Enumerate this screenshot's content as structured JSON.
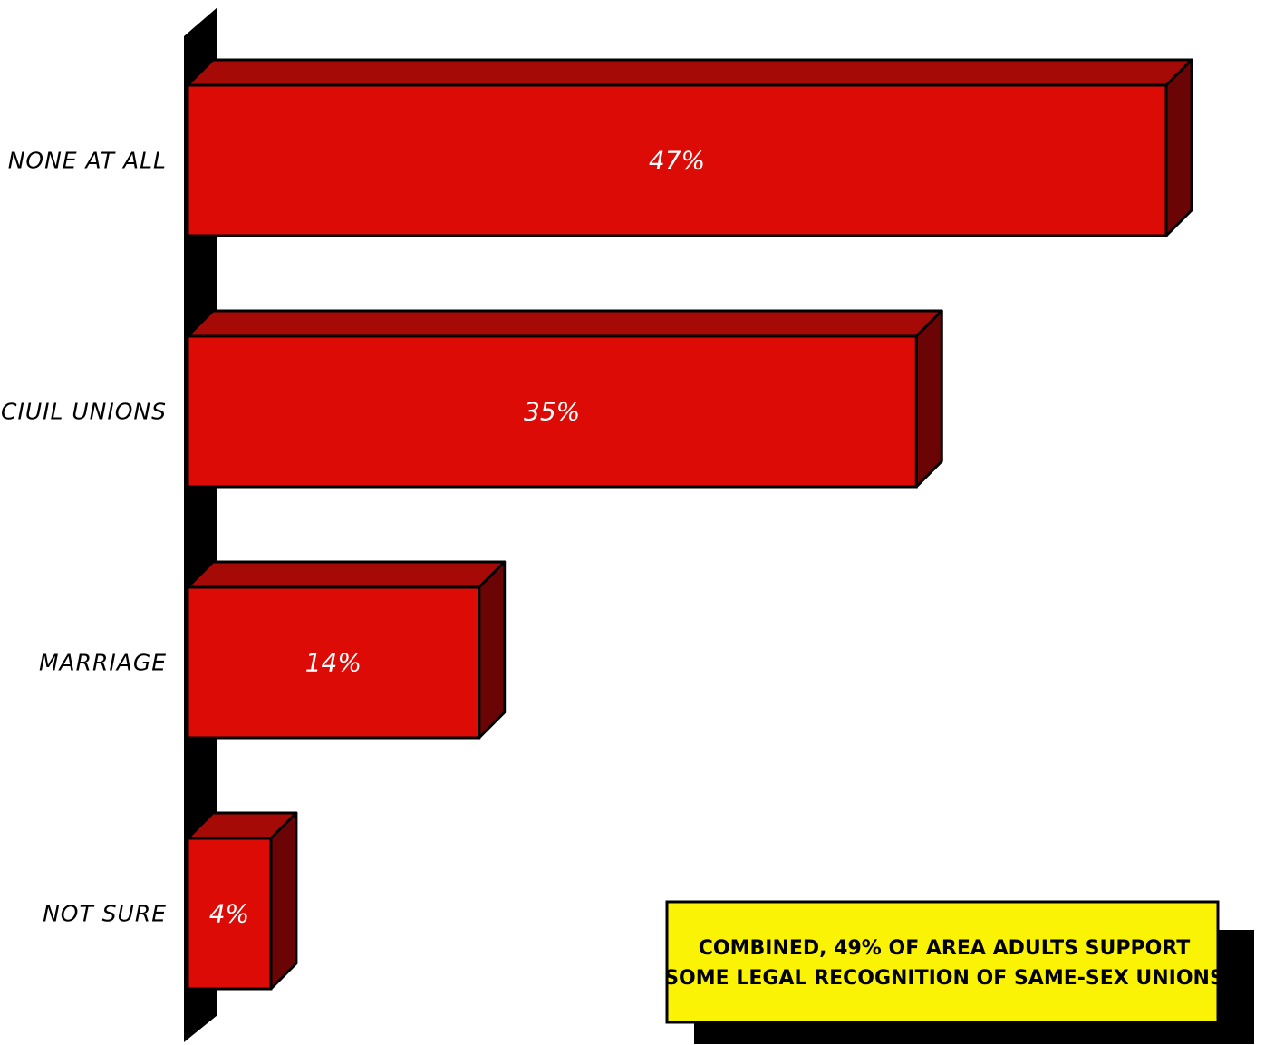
{
  "chart_data": {
    "type": "bar",
    "orientation": "horizontal",
    "categories": [
      "NONE AT ALL",
      "CIUIL UNIONS",
      "MARRIAGE",
      "NOT SURE"
    ],
    "values": [
      47,
      35,
      14,
      4
    ],
    "value_labels": [
      "47%",
      "35%",
      "14%",
      "4%"
    ],
    "xlim": [
      0,
      47
    ],
    "grid": false,
    "legend": "none",
    "style": "3d",
    "colors": {
      "bar_front": "#dd0b06",
      "bar_top": "#a60a07",
      "bar_side": "#6b0505",
      "axis_wall": "#000000",
      "note_fill": "#fbf306",
      "note_shadow": "#000000"
    },
    "annotation": {
      "lines": [
        "COMBINED, 49% OF AREA ADULTS SUPPORT",
        "SOME LEGAL RECOGNITION OF SAME-SEX UNIONS"
      ],
      "placement": "bottom-right"
    }
  }
}
